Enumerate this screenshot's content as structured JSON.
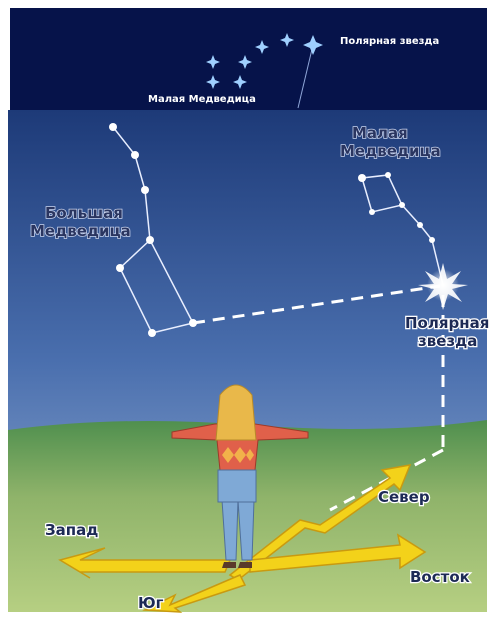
{
  "inset": {
    "polaris": "Полярная звезда",
    "little_dipper": "Малая Медведица"
  },
  "labels": {
    "big_dipper": [
      "Большая",
      "Медведица"
    ],
    "little_dipper": [
      "Малая",
      "Медведица"
    ],
    "polaris": [
      "Полярная",
      "звезда"
    ],
    "north": "Север",
    "west": "Запад",
    "east": "Восток",
    "south": "Юг"
  }
}
